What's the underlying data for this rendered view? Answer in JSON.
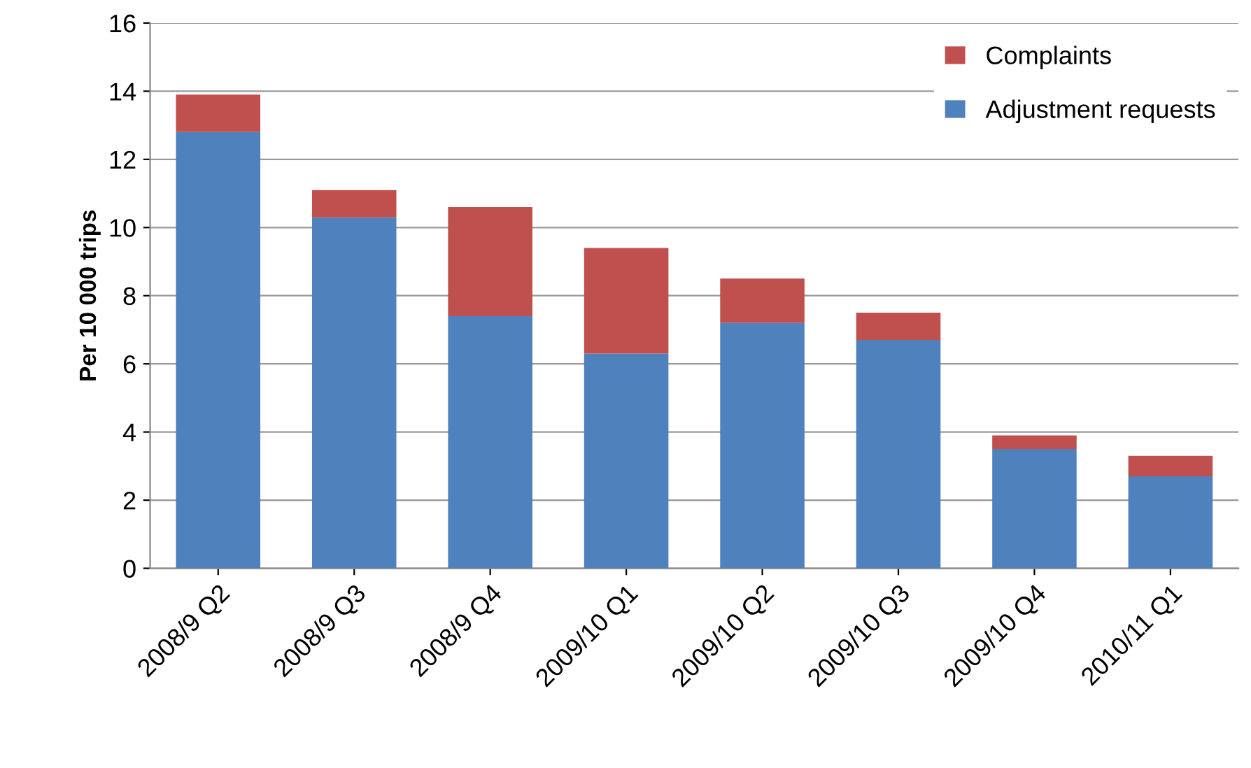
{
  "chart_data": {
    "type": "bar",
    "stacked": true,
    "ylabel": "Per 10 000 trips",
    "categories": [
      "2008/9 Q2",
      "2008/9 Q3",
      "2008/9 Q4",
      "2009/10 Q1",
      "2009/10 Q2",
      "2009/10 Q3",
      "2009/10 Q4",
      "2010/11 Q1"
    ],
    "series": [
      {
        "name": "Adjustment requests",
        "color": "#4f81bd",
        "values": [
          12.8,
          10.3,
          7.4,
          6.3,
          7.2,
          6.7,
          3.5,
          2.7
        ]
      },
      {
        "name": "Complaints",
        "color": "#c0504d",
        "values": [
          1.1,
          0.8,
          3.2,
          3.1,
          1.3,
          0.8,
          0.4,
          0.6
        ]
      }
    ],
    "ylim": [
      0,
      16
    ],
    "yticks": [
      0,
      2,
      4,
      6,
      8,
      10,
      12,
      14,
      16
    ],
    "grid": "y",
    "legend": "top right"
  }
}
